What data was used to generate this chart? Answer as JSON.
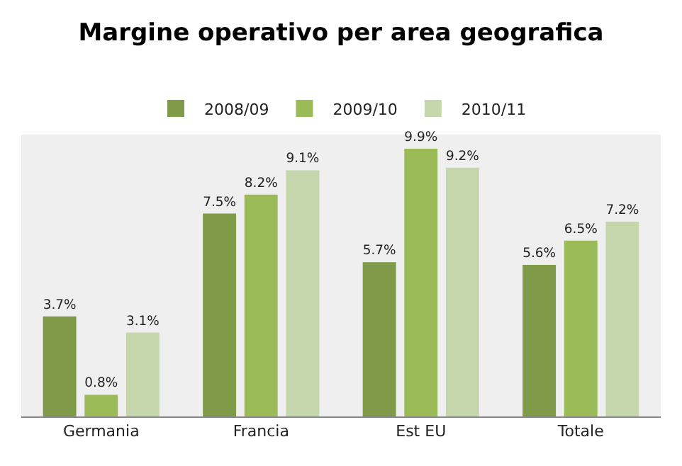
{
  "chart_data": {
    "type": "bar",
    "title": "Margine operativo per area geografica",
    "categories": [
      "Germania",
      "Francia",
      "Est EU",
      "Totale"
    ],
    "series": [
      {
        "name": "2008/09",
        "color": "#7f9a48",
        "values": [
          3.7,
          7.5,
          5.7,
          5.6
        ],
        "value_labels": [
          "3.7%",
          "7.5%",
          "5.7%",
          "5.6%"
        ]
      },
      {
        "name": "2009/10",
        "color": "#9bbb59",
        "values": [
          0.8,
          8.2,
          9.9,
          6.5
        ],
        "value_labels": [
          "0.8%",
          "8.2%",
          "9.9%",
          "6.5%"
        ]
      },
      {
        "name": "2010/11",
        "color": "#c6d6ac",
        "values": [
          3.1,
          9.1,
          9.2,
          7.2
        ],
        "value_labels": [
          "3.1%",
          "9.1%",
          "9.2%",
          "7.2%"
        ]
      }
    ],
    "legend": "top",
    "grid": false
  }
}
